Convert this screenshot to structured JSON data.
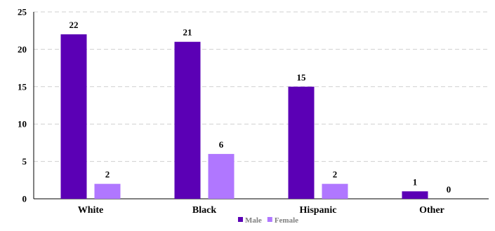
{
  "chart_data": {
    "type": "bar",
    "categories": [
      "White",
      "Black",
      "Hispanic",
      "Other"
    ],
    "series": [
      {
        "name": "Male",
        "values": [
          22,
          21,
          15,
          1
        ],
        "color": "#5b00b5"
      },
      {
        "name": "Female",
        "values": [
          2,
          6,
          2,
          0
        ],
        "color": "#b077ff"
      }
    ],
    "ylim": [
      0,
      25
    ],
    "yticks": [
      0,
      5,
      10,
      15,
      20,
      25
    ],
    "grid": true,
    "legend": "bottom-center",
    "data_labels": true,
    "legend_text_color": "#808080"
  }
}
